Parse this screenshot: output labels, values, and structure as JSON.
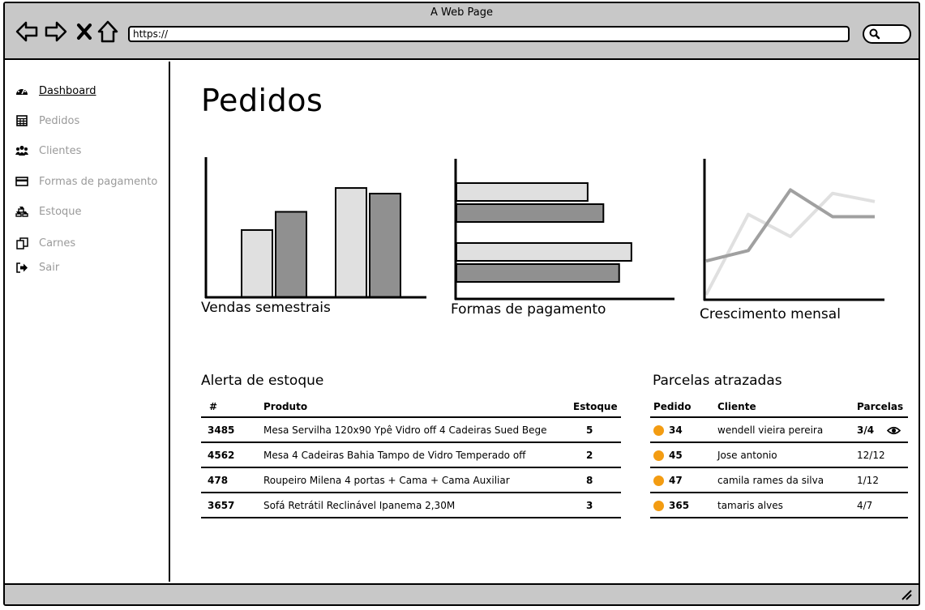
{
  "browser": {
    "title": "A Web Page",
    "url": "https://"
  },
  "sidebar": {
    "items": [
      {
        "label": "Dashboard",
        "icon": "dashboard-icon",
        "active": true
      },
      {
        "label": "Pedidos",
        "icon": "calculator-icon"
      },
      {
        "label": "Clientes",
        "icon": "users-icon"
      },
      {
        "label": "Formas de pagamento",
        "icon": "credit-card-icon"
      },
      {
        "label": "Estoque",
        "icon": "cubes-icon"
      },
      {
        "label": "Carnes",
        "icon": "copy-icon"
      },
      {
        "label": "Sair",
        "icon": "sign-out-icon"
      }
    ]
  },
  "main": {
    "title": "Pedidos"
  },
  "charts": {
    "vendas": {
      "caption": "Vendas semestrais"
    },
    "formas": {
      "caption": "Formas de pagamento"
    },
    "crescimento": {
      "caption": "Crescimento mensal"
    }
  },
  "chart_data": [
    {
      "type": "bar",
      "title": "Vendas semestrais",
      "categories": [
        "",
        ""
      ],
      "series": [
        {
          "values": [
            48,
            78
          ],
          "color": "#e0e0e0"
        },
        {
          "values": [
            61,
            74
          ],
          "color": "#909090"
        }
      ],
      "ylim": [
        0,
        100
      ],
      "grid": false
    },
    {
      "type": "bar",
      "orientation": "horizontal",
      "title": "Formas de pagamento",
      "categories": [
        "",
        ""
      ],
      "series": [
        {
          "values": [
            75,
            100
          ],
          "color": "#e0e0e0"
        },
        {
          "values": [
            84,
            93
          ],
          "color": "#909090"
        }
      ],
      "xlim": [
        0,
        120
      ],
      "grid": false
    },
    {
      "type": "line",
      "title": "Crescimento mensal",
      "x": [
        0,
        1,
        2,
        3,
        4
      ],
      "series": [
        {
          "values": [
            0,
            69,
            50,
            87,
            80
          ],
          "color": "#e0e0e0"
        },
        {
          "values": [
            29,
            38,
            90,
            67,
            67
          ],
          "color": "#a0a0a0"
        }
      ],
      "ylim": [
        0,
        100
      ],
      "grid": false
    }
  ],
  "estoque": {
    "title": "Alerta de estoque",
    "columns": [
      "#",
      "Produto",
      "Estoque"
    ],
    "rows": [
      {
        "id": "3485",
        "produto": "Mesa Servilha 120x90 Ypê Vidro off 4 Cadeiras Sued Bege",
        "estoque": "5"
      },
      {
        "id": "4562",
        "produto": "Mesa 4 Cadeiras Bahia Tampo de Vidro Temperado off",
        "estoque": "2"
      },
      {
        "id": "478",
        "produto": "Roupeiro Milena 4 portas + Cama + Cama Auxiliar",
        "estoque": "8"
      },
      {
        "id": "3657",
        "produto": "Sofá Retrátil Reclinável Ipanema 2,30M",
        "estoque": "3"
      }
    ]
  },
  "parcelas": {
    "title": "Parcelas atrazadas",
    "columns": [
      "Pedido",
      "Cliente",
      "Parcelas"
    ],
    "status_color": "#f39c12",
    "rows": [
      {
        "pedido": "34",
        "cliente": "wendell vieira pereira",
        "parcelas": "3/4",
        "view_icon": "eye-icon"
      },
      {
        "pedido": "45",
        "cliente": "Jose antonio",
        "parcelas": "12/12"
      },
      {
        "pedido": "47",
        "cliente": "camila rames da silva",
        "parcelas": "1/12"
      },
      {
        "pedido": "365",
        "cliente": "tamaris alves",
        "parcelas": "4/7"
      }
    ]
  }
}
